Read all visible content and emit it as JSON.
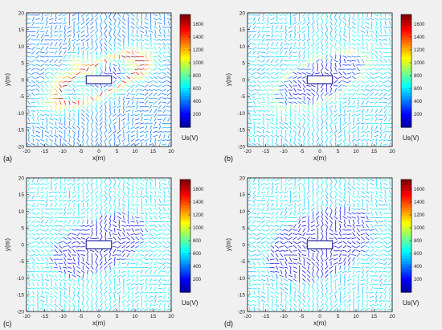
{
  "chart_data": [
    {
      "type": "heatmap",
      "panel_label": "(a)",
      "xlabel": "x(m)",
      "ylabel": "y(m)",
      "colorbar_label": "Us(V)",
      "xlim": [
        -20,
        20
      ],
      "ylim": [
        -20,
        20
      ],
      "xticks": [
        -20,
        -15,
        -10,
        -5,
        0,
        5,
        10,
        15,
        20
      ],
      "yticks": [
        -20,
        -15,
        -10,
        -5,
        0,
        5,
        10,
        15,
        20
      ],
      "colorbar_ticks": [
        200,
        400,
        600,
        800,
        1000,
        1200,
        1400,
        1600
      ],
      "colorbar_range": [
        0,
        1750
      ],
      "field": {
        "background": 430,
        "peak": 1750,
        "inner": 120,
        "halo_radius": 8
      },
      "hotspots": [
        [
          -11,
          0
        ],
        [
          -6,
          5
        ],
        [
          -4,
          -3
        ],
        [
          9,
          6
        ],
        [
          12,
          3
        ],
        [
          -2,
          2
        ]
      ]
    },
    {
      "type": "heatmap",
      "panel_label": "(b)",
      "xlabel": "x(m)",
      "ylabel": "y(m)",
      "colorbar_label": "Us(V)",
      "xlim": [
        -20,
        20
      ],
      "ylim": [
        -20,
        20
      ],
      "xticks": [
        -20,
        -15,
        -10,
        -5,
        0,
        5,
        10,
        15,
        20
      ],
      "yticks": [
        -20,
        -15,
        -10,
        -5,
        0,
        5,
        10,
        15,
        20
      ],
      "colorbar_ticks": [
        200,
        400,
        600,
        800,
        1000,
        1200,
        1400,
        1600
      ],
      "colorbar_range": [
        0,
        1750
      ],
      "field": {
        "background": 560,
        "peak": 950,
        "inner": 110,
        "halo_radius": 9
      },
      "hotspots": []
    },
    {
      "type": "heatmap",
      "panel_label": "(c)",
      "xlabel": "x(m)",
      "ylabel": "y(m)",
      "colorbar_label": "Us(V)",
      "xlim": [
        -20,
        20
      ],
      "ylim": [
        -20,
        20
      ],
      "xticks": [
        -20,
        -15,
        -10,
        -5,
        0,
        5,
        10,
        15,
        20
      ],
      "yticks": [
        -20,
        -15,
        -10,
        -5,
        0,
        5,
        10,
        15,
        20
      ],
      "colorbar_ticks": [
        200,
        400,
        600,
        800,
        1000,
        1200,
        1400,
        1600
      ],
      "colorbar_range": [
        0,
        1750
      ],
      "field": {
        "background": 620,
        "peak": 640,
        "inner": 90,
        "halo_radius": 11
      },
      "hotspots": []
    },
    {
      "type": "heatmap",
      "panel_label": "(d)",
      "xlabel": "x(m)",
      "ylabel": "y(m)",
      "colorbar_label": "Us(V)",
      "xlim": [
        -20,
        20
      ],
      "ylim": [
        -20,
        20
      ],
      "xticks": [
        -20,
        -15,
        -10,
        -5,
        0,
        5,
        10,
        15,
        20
      ],
      "yticks": [
        -20,
        -15,
        -10,
        -5,
        0,
        5,
        10,
        15,
        20
      ],
      "colorbar_ticks": [
        200,
        400,
        600,
        800,
        1000,
        1200,
        1400,
        1600
      ],
      "colorbar_range": [
        0,
        1750
      ],
      "field": {
        "background": 610,
        "peak": 560,
        "inner": 80,
        "halo_radius": 14
      },
      "hotspots": []
    }
  ]
}
